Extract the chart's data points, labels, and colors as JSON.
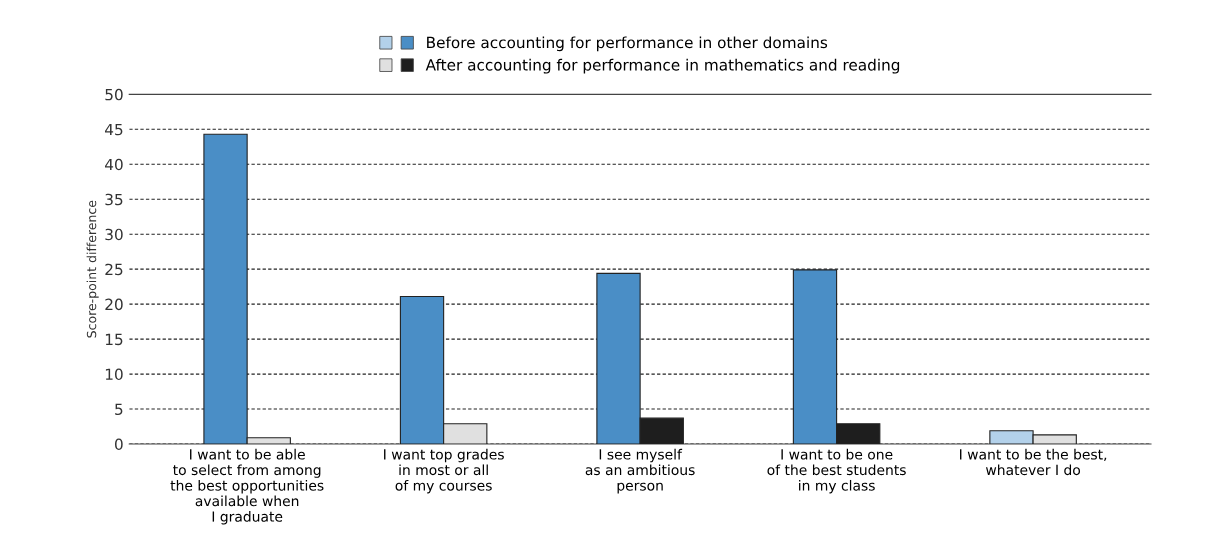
{
  "chart_data": {
    "type": "bar",
    "categories": [
      "I want to be able\nto select from among\nthe best opportunities\navailable when\nI graduate",
      "I want top grades\nin most or all\nof my courses",
      "I see myself\nas an ambitious\nperson",
      "I want to be one\nof the best students\nin my class",
      "I want to be the best,\nwhatever I do"
    ],
    "series": [
      {
        "name": "Before accounting for performance in other domains",
        "colors": [
          "#4a8ec6",
          "#4a8ec6",
          "#4a8ec6",
          "#4a8ec6",
          "#b3d1ea"
        ],
        "values": [
          44.3,
          21.1,
          24.4,
          24.9,
          1.9
        ]
      },
      {
        "name": "After accounting for performance in mathematics and reading",
        "colors": [
          "#e0e0e0",
          "#e0e0e0",
          "#1e1e1e",
          "#1e1e1e",
          "#e0e0e0"
        ],
        "values": [
          0.9,
          2.9,
          3.7,
          2.9,
          1.3
        ]
      }
    ],
    "ylabel": "Score-point difference",
    "ylim": [
      0,
      50
    ],
    "yticks": [
      0,
      5,
      10,
      15,
      20,
      25,
      30,
      35,
      40,
      45,
      50
    ],
    "grid": "y",
    "legend": "top"
  }
}
